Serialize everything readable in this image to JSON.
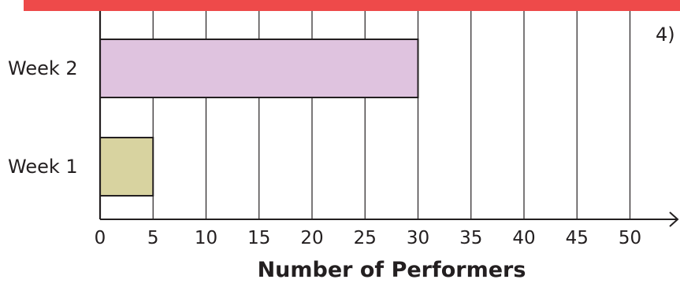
{
  "colors": {
    "banner": "#ee4a4a",
    "grid": "#231f20",
    "axis": "#231f20",
    "bar_week1": "#d8d3a0",
    "bar_week2": "#dfc3df"
  },
  "side_text": "4)",
  "chart_data": {
    "type": "bar",
    "orientation": "horizontal",
    "categories": [
      "Week 1",
      "Week 2"
    ],
    "values": [
      5,
      30
    ],
    "title": "",
    "xlabel": "Number of Performers",
    "ylabel": "",
    "xlim": [
      0,
      55
    ],
    "xticks": [
      0,
      5,
      10,
      15,
      20,
      25,
      30,
      35,
      40,
      45,
      50
    ],
    "tick_labels": [
      "0",
      "5",
      "10",
      "15",
      "20",
      "25",
      "30",
      "35",
      "40",
      "45",
      "50"
    ],
    "grid": true,
    "legend": "none"
  }
}
